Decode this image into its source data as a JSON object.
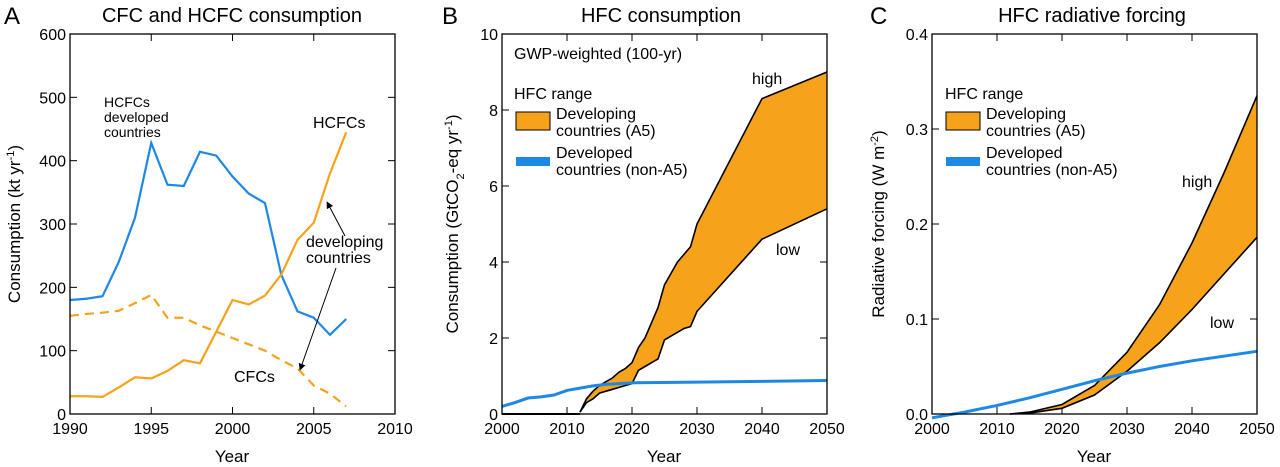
{
  "colors": {
    "orange": "#F7A21B",
    "blue": "#1E88E5",
    "black": "#000000"
  },
  "panels": {
    "a": {
      "letter": "A",
      "title": "CFC and HCFC consumption",
      "xlabel": "Year",
      "ylabel": "Consumption (kt yr",
      "ylabel_sup": "-1",
      "ylabel_end": ")",
      "annotations": {
        "hcfc_dev_1": "HCFCs",
        "hcfc_dev_2": "developed",
        "hcfc_dev_3": "countries",
        "hcfcs": "HCFCs",
        "dev_1": "developing",
        "dev_2": "countries",
        "cfcs": "CFCs"
      }
    },
    "b": {
      "letter": "B",
      "title": "HFC consumption",
      "xlabel": "Year",
      "ylabel": "Consumption (GtCO",
      "ylabel_sub": "2",
      "ylabel_end": "-eq yr",
      "ylabel_sup": "-1",
      "ylabel_close": ")",
      "annotations": {
        "gwp": "GWP-weighted (100-yr)",
        "high": "high",
        "low": "low"
      },
      "legend": {
        "title": "HFC range",
        "item1_a": "Developing",
        "item1_b": "countries (A5)",
        "item2_a": "Developed",
        "item2_b": "countries (non-A5)"
      }
    },
    "c": {
      "letter": "C",
      "title": "HFC radiative forcing",
      "xlabel": "Year",
      "ylabel": "Radiative forcing (W m",
      "ylabel_sup": "-2",
      "ylabel_end": ")",
      "annotations": {
        "high": "high",
        "low": "low"
      },
      "legend": {
        "title": "HFC range",
        "item1_a": "Developing",
        "item1_b": "countries (A5)",
        "item2_a": "Developed",
        "item2_b": "countries (non-A5)"
      }
    }
  },
  "chart_data": [
    {
      "type": "line",
      "title": "CFC and HCFC consumption",
      "xlabel": "Year",
      "ylabel": "Consumption (kt yr-1)",
      "xlim": [
        1990,
        2010
      ],
      "ylim": [
        0,
        600
      ],
      "xticks": [
        1990,
        1995,
        2000,
        2005,
        2010
      ],
      "yticks": [
        0,
        100,
        200,
        300,
        400,
        500,
        600
      ],
      "series": [
        {
          "color": "#1E88E5",
          "style": "solid",
          "x": [
            1990,
            1991,
            1992,
            1993,
            1994,
            1995,
            1996,
            1997,
            1998,
            1999,
            2000,
            2001,
            2002,
            2003,
            2004,
            2005,
            2006,
            2007
          ],
          "y": [
            180,
            182,
            186,
            240,
            310,
            428,
            362,
            360,
            414,
            408,
            375,
            348,
            333,
            220,
            162,
            152,
            125,
            150
          ]
        },
        {
          "color": "#F7A21B",
          "style": "solid",
          "x": [
            1990,
            1991,
            1992,
            1993,
            1994,
            1995,
            1996,
            1997,
            1998,
            1999,
            2000,
            2001,
            2002,
            2003,
            2004,
            2005,
            2006,
            2007
          ],
          "y": [
            28,
            28,
            27,
            42,
            58,
            56,
            68,
            85,
            80,
            130,
            180,
            173,
            187,
            220,
            275,
            302,
            380,
            445
          ]
        },
        {
          "color": "#F7A21B",
          "style": "dashed",
          "x": [
            1990,
            1991,
            1992,
            1993,
            1994,
            1995,
            1996,
            1997,
            1998,
            1999,
            2000,
            2001,
            2002,
            2003,
            2004,
            2005,
            2006,
            2007
          ],
          "y": [
            155,
            158,
            160,
            163,
            175,
            188,
            152,
            152,
            140,
            130,
            120,
            110,
            100,
            85,
            72,
            45,
            32,
            12
          ]
        }
      ]
    },
    {
      "type": "area",
      "title": "HFC consumption",
      "xlabel": "Year",
      "ylabel": "Consumption (GtCO2-eq yr-1)",
      "xlim": [
        2000,
        2050
      ],
      "ylim": [
        0,
        10
      ],
      "xticks": [
        2000,
        2010,
        2020,
        2030,
        2040,
        2050
      ],
      "yticks": [
        0,
        2,
        4,
        6,
        8,
        10
      ],
      "series": [
        {
          "color": "#F7A21B",
          "kind": "range",
          "x": [
            2012,
            2013,
            2014,
            2015,
            2016,
            2017,
            2018,
            2019,
            2020,
            2021,
            2022,
            2023,
            2024,
            2025,
            2026,
            2027,
            2028,
            2029,
            2030,
            2040,
            2050
          ],
          "high": [
            0.05,
            0.4,
            0.6,
            0.75,
            0.85,
            0.95,
            1.1,
            1.2,
            1.35,
            1.75,
            2.0,
            2.4,
            2.8,
            3.4,
            3.7,
            4.0,
            4.2,
            4.4,
            5.0,
            8.3,
            9.0
          ],
          "low": [
            0.05,
            0.3,
            0.4,
            0.55,
            0.6,
            0.65,
            0.7,
            0.75,
            0.8,
            1.15,
            1.25,
            1.35,
            1.45,
            1.95,
            2.05,
            2.15,
            2.25,
            2.3,
            2.7,
            4.6,
            5.4
          ]
        },
        {
          "color": "#1E88E5",
          "kind": "band",
          "x": [
            2000,
            2002,
            2004,
            2006,
            2008,
            2010,
            2012,
            2014,
            2016,
            2018,
            2020,
            2030,
            2040,
            2050
          ],
          "y": [
            0.2,
            0.3,
            0.42,
            0.45,
            0.5,
            0.62,
            0.68,
            0.74,
            0.78,
            0.8,
            0.82,
            0.84,
            0.86,
            0.88
          ]
        },
        {
          "color": "#000000",
          "kind": "line",
          "x": [
            2000,
            2012
          ],
          "y": [
            0,
            0
          ]
        }
      ]
    },
    {
      "type": "area",
      "title": "HFC radiative forcing",
      "xlabel": "Year",
      "ylabel": "Radiative forcing (W m-2)",
      "xlim": [
        2000,
        2050
      ],
      "ylim": [
        0,
        0.4
      ],
      "xticks": [
        2000,
        2010,
        2020,
        2030,
        2040,
        2050
      ],
      "yticks": [
        0.0,
        0.1,
        0.2,
        0.3,
        0.4
      ],
      "series": [
        {
          "color": "#F7A21B",
          "kind": "range",
          "x": [
            2012,
            2015,
            2020,
            2025,
            2030,
            2035,
            2040,
            2045,
            2050
          ],
          "high": [
            0.0,
            0.002,
            0.01,
            0.03,
            0.065,
            0.115,
            0.18,
            0.255,
            0.335
          ],
          "low": [
            0.0,
            0.001,
            0.006,
            0.02,
            0.045,
            0.075,
            0.11,
            0.148,
            0.186
          ]
        },
        {
          "color": "#1E88E5",
          "kind": "band",
          "x": [
            2000,
            2005,
            2010,
            2015,
            2020,
            2025,
            2030,
            2035,
            2040,
            2045,
            2050
          ],
          "y": [
            -0.004,
            0.002,
            0.009,
            0.017,
            0.026,
            0.035,
            0.043,
            0.05,
            0.056,
            0.061,
            0.066
          ]
        }
      ]
    }
  ]
}
